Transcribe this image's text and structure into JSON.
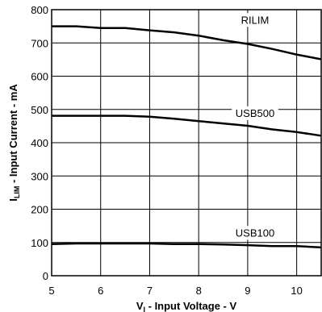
{
  "chart_data": {
    "type": "line",
    "xlabel": {
      "prefix": "V",
      "subscript": "I",
      "suffix": " - Input Voltage - V"
    },
    "ylabel": {
      "prefix": "I",
      "subscript": "LIM",
      "suffix": " - Input Current - mA"
    },
    "xlim": [
      5,
      10.5
    ],
    "ylim": [
      0,
      800
    ],
    "xticks": [
      5,
      6,
      7,
      8,
      9,
      10
    ],
    "yticks": [
      0,
      100,
      200,
      300,
      400,
      500,
      600,
      700,
      800
    ],
    "grid": true,
    "series": [
      {
        "name": "RILIM",
        "label_at": [
          9.15,
          758
        ],
        "x": [
          5,
          5.5,
          6,
          6.5,
          7,
          7.5,
          8,
          8.5,
          9,
          9.5,
          10,
          10.5
        ],
        "y": [
          750,
          750,
          745,
          745,
          738,
          732,
          722,
          708,
          697,
          682,
          665,
          651
        ]
      },
      {
        "name": "USB500",
        "label_at": [
          9.15,
          478
        ],
        "x": [
          5,
          5.5,
          6,
          6.5,
          7,
          7.5,
          8,
          8.5,
          9,
          9.5,
          10,
          10.5
        ],
        "y": [
          481,
          481,
          481,
          481,
          478,
          472,
          465,
          458,
          451,
          440,
          432,
          421
        ]
      },
      {
        "name": "USB100",
        "label_at": [
          9.15,
          118
        ],
        "x": [
          5,
          5.5,
          6,
          6.5,
          7,
          7.5,
          8,
          8.5,
          9,
          9.5,
          10,
          10.5
        ],
        "y": [
          95,
          97,
          97,
          97,
          97,
          95,
          95,
          94,
          92,
          89,
          89,
          85
        ]
      }
    ]
  }
}
